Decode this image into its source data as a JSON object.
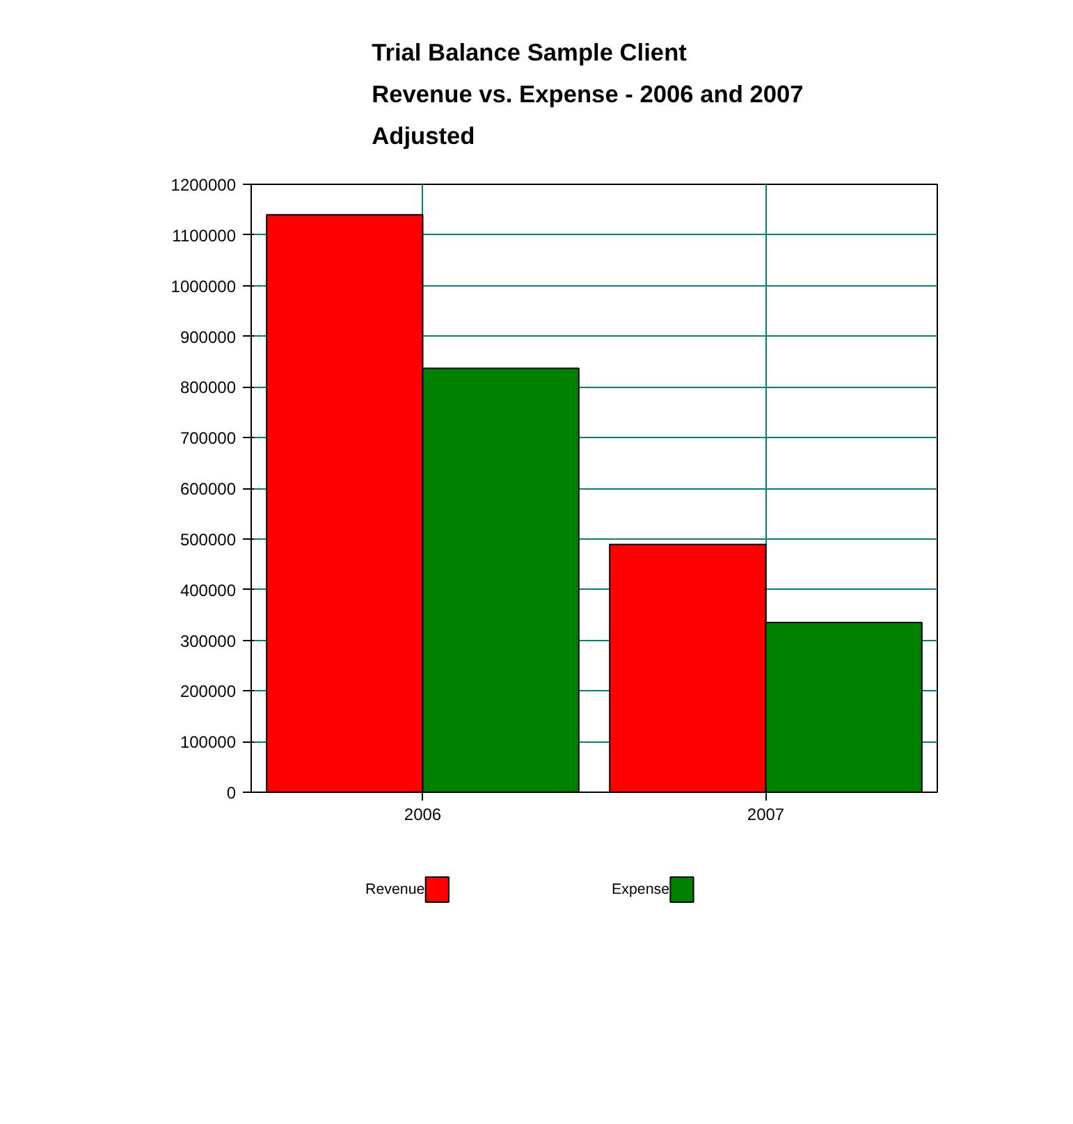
{
  "chart_data": {
    "type": "bar",
    "title": "Trial Balance Sample Client\nRevenue vs. Expense - 2006  and  2007\nAdjusted",
    "categories": [
      "2006",
      "2007"
    ],
    "series": [
      {
        "name": "Revenue",
        "color": "#ff0000",
        "values": [
          1140000,
          489000
        ]
      },
      {
        "name": "Expense",
        "color": "#008000",
        "values": [
          837000,
          335000
        ]
      }
    ],
    "ylim": [
      0,
      1200000
    ],
    "yticks": [
      0,
      100000,
      200000,
      300000,
      400000,
      500000,
      600000,
      700000,
      800000,
      900000,
      1000000,
      1100000,
      1200000
    ],
    "grid": true,
    "legend": "bottom"
  }
}
